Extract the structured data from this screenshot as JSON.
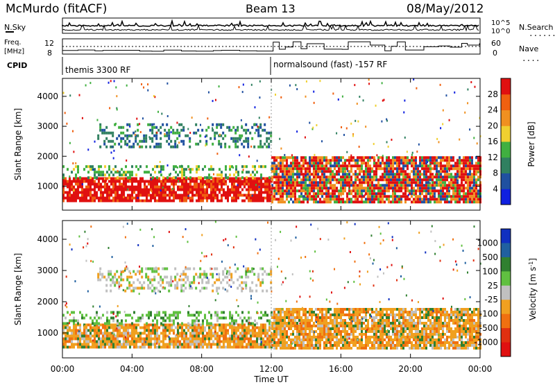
{
  "header": {
    "title": "McMurdo (fitACF)",
    "beam": "Beam 13",
    "date": "08/May/2012"
  },
  "noise_panel": {
    "left_label": "N.Sky",
    "right_label": "N.Search",
    "right_ticks": [
      "10^5",
      "10^0"
    ]
  },
  "freq_panel": {
    "left_label_1": "Freq.",
    "left_label_2": "[MHz]",
    "left_ticks": [
      "12",
      "8"
    ],
    "right_label": "Nave",
    "right_ticks": [
      "60",
      "0"
    ]
  },
  "cpid": {
    "label": "CPID",
    "programs": [
      "themis 3300 RF",
      "normalsound (fast) -157 RF"
    ]
  },
  "chart_data": [
    {
      "type": "heatmap",
      "title": "",
      "xlabel": "",
      "ylabel": "Slant Range [km]",
      "x_ticks": [
        "00:00",
        "04:00",
        "08:00",
        "12:00",
        "16:00",
        "20:00",
        "00:00"
      ],
      "y_ticks": [
        1000,
        2000,
        3000,
        4000
      ],
      "ylim": [
        200,
        4600
      ],
      "colorbar": {
        "label": "Power [dB]",
        "ticks": [
          4,
          8,
          12,
          16,
          20,
          24,
          28
        ],
        "colors": [
          "#1020e0",
          "#2050a0",
          "#308060",
          "#40b040",
          "#f0d030",
          "#f09020",
          "#f06010",
          "#e01010"
        ]
      },
      "bands": [
        {
          "t_start": 0,
          "t_end": 12,
          "range_low": 500,
          "range_high": 1300,
          "power": 28
        },
        {
          "t_start": 0,
          "t_end": 12,
          "range_low": 1300,
          "range_high": 1700,
          "power": 16
        },
        {
          "t_start": 12,
          "t_end": 24,
          "range_low": 500,
          "range_high": 2000,
          "power": 20
        },
        {
          "t_start": 2,
          "t_end": 12,
          "range_low": 2300,
          "range_high": 3100,
          "power": 12
        }
      ]
    },
    {
      "type": "heatmap",
      "title": "",
      "xlabel": "Time UT",
      "ylabel": "Slant Range [km]",
      "x_ticks": [
        "00:00",
        "04:00",
        "08:00",
        "12:00",
        "16:00",
        "20:00",
        "00:00"
      ],
      "y_ticks": [
        1000,
        2000,
        3000,
        4000
      ],
      "ylim": [
        200,
        4600
      ],
      "colorbar": {
        "label": "Velocity [m s^-1]",
        "ticks": [
          "1000",
          "500",
          "100",
          "25",
          "-25",
          "-100",
          "-500",
          "-1000"
        ],
        "colors": [
          "#1030c0",
          "#2060a0",
          "#308030",
          "#60c040",
          "#c0c0c0",
          "#f0a020",
          "#f07010",
          "#e03010",
          "#e01010"
        ]
      },
      "bands": [
        {
          "t_start": 0,
          "t_end": 12,
          "range_low": 500,
          "range_high": 1300,
          "velocity": -100
        },
        {
          "t_start": 0,
          "t_end": 12,
          "range_low": 1300,
          "range_high": 1700,
          "velocity": 100
        },
        {
          "t_start": 12,
          "t_end": 24,
          "range_low": 500,
          "range_high": 1800,
          "velocity": -100
        },
        {
          "t_start": 2,
          "t_end": 12,
          "range_low": 2300,
          "range_high": 3100,
          "velocity": 25
        }
      ]
    }
  ]
}
